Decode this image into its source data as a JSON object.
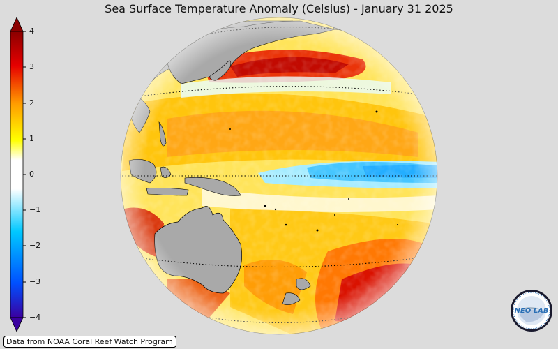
{
  "title": "Sea Surface Temperature Anomaly (Celsius) - January 31 2025",
  "colorbar": {
    "ticks": [
      "4",
      "3",
      "2",
      "1",
      "0",
      "−1",
      "−2",
      "−3",
      "−4"
    ],
    "min": -4,
    "max": 4,
    "extend": "both",
    "colors": [
      "#3a00a0",
      "#0050ff",
      "#00c8ff",
      "#ffffff",
      "#ffff00",
      "#ff9a00",
      "#e60000",
      "#8b0000"
    ]
  },
  "map": {
    "projection": "orthographic",
    "land_color": "#a9a9a9",
    "ocean_colors": {
      "warm": "#ffd000",
      "hot": "#ff6000",
      "very_hot": "#d40000",
      "cool": "#8fe8ff",
      "cold": "#20b8ff"
    }
  },
  "source_note": "Data from NOAA Coral Reef Watch Program",
  "logo": {
    "text": "NEO LAB",
    "icon": "neo-lab-logo"
  }
}
